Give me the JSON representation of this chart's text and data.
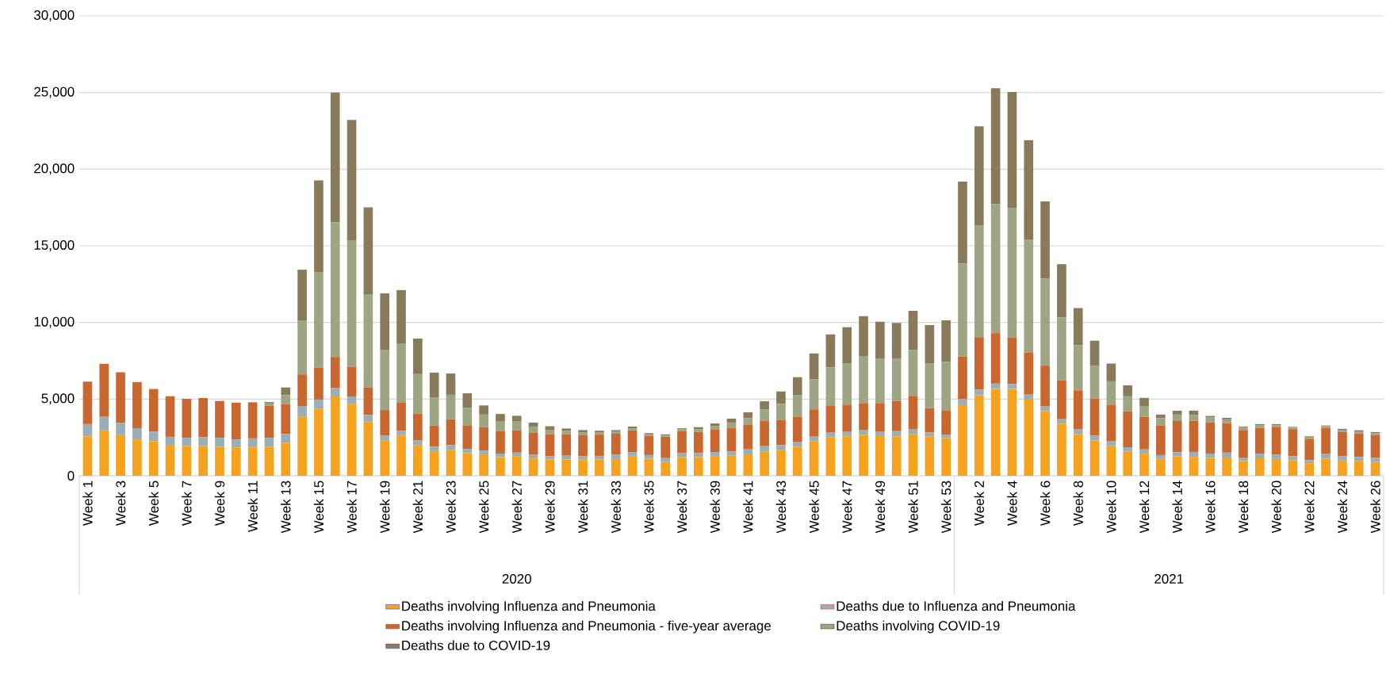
{
  "chart_data": {
    "type": "bar",
    "stacked": true,
    "categories": [
      "Week 1",
      null,
      "Week 3",
      null,
      "Week 5",
      null,
      "Week 7",
      null,
      "Week 9",
      null,
      "Week 11",
      null,
      "Week 13",
      null,
      "Week 15",
      null,
      "Week 17",
      null,
      "Week 19",
      null,
      "Week 21",
      null,
      "Week 23",
      null,
      "Week 25",
      null,
      "Week 27",
      null,
      "Week 29",
      null,
      "Week 31",
      null,
      "Week 33",
      null,
      "Week 35",
      null,
      "Week 37",
      null,
      "Week 39",
      null,
      "Week 41",
      null,
      "Week 43",
      null,
      "Week 45",
      null,
      "Week 47",
      null,
      "Week 49",
      null,
      "Week 51",
      null,
      "Week 53",
      null,
      "Week 2",
      null,
      "Week 4",
      null,
      "Week 6",
      null,
      "Week 8",
      null,
      "Week 10",
      null,
      "Week 12",
      null,
      "Week 14",
      null,
      "Week 16",
      null,
      "Week 18",
      null,
      "Week 20",
      null,
      "Week 22",
      null,
      "Week 24",
      null,
      "Week 26"
    ],
    "series": [
      {
        "name": "Deaths involving Influenza and Pneumonia",
        "color": "#f5a31e",
        "values": [
          2560,
          2960,
          2650,
          2370,
          2250,
          1970,
          1940,
          1940,
          1900,
          1850,
          1900,
          1890,
          2150,
          3840,
          4360,
          5170,
          4670,
          3560,
          2320,
          2650,
          2000,
          1610,
          1670,
          1470,
          1350,
          1210,
          1250,
          1130,
          1070,
          1070,
          1050,
          1050,
          1090,
          1250,
          1110,
          890,
          1210,
          1210,
          1250,
          1310,
          1400,
          1590,
          1690,
          1900,
          2260,
          2500,
          2570,
          2670,
          2590,
          2570,
          2710,
          2570,
          2450,
          4610,
          5240,
          5670,
          5670,
          4960,
          4220,
          3400,
          2710,
          2310,
          1930,
          1580,
          1440,
          1100,
          1260,
          1230,
          1170,
          1190,
          960,
          1140,
          1090,
          1010,
          820,
          1110,
          990,
          940,
          890
        ]
      },
      {
        "name": "Deaths due to Influenza and Pneumonia",
        "color": "#9aafb5",
        "values": [
          810,
          920,
          810,
          730,
          640,
          570,
          530,
          570,
          570,
          520,
          540,
          580,
          580,
          710,
          610,
          540,
          500,
          400,
          290,
          290,
          320,
          290,
          330,
          280,
          280,
          240,
          260,
          240,
          200,
          240,
          220,
          240,
          280,
          300,
          240,
          260,
          280,
          280,
          300,
          280,
          320,
          340,
          310,
          290,
          290,
          310,
          290,
          300,
          270,
          340,
          310,
          260,
          210,
          390,
          380,
          340,
          320,
          330,
          300,
          290,
          340,
          320,
          310,
          280,
          280,
          250,
          280,
          320,
          280,
          320,
          230,
          300,
          300,
          270,
          200,
          300,
          290,
          290,
          270
        ]
      },
      {
        "name": "Deaths involving Influenza and Pneumonia - five-year average",
        "color": "#c8672f",
        "values": [
          2770,
          3420,
          3290,
          3010,
          2770,
          2650,
          2550,
          2560,
          2410,
          2400,
          2350,
          2110,
          1940,
          2060,
          2090,
          2040,
          1940,
          1800,
          1680,
          1820,
          1730,
          1370,
          1690,
          1540,
          1530,
          1470,
          1450,
          1430,
          1430,
          1390,
          1370,
          1390,
          1370,
          1410,
          1250,
          1390,
          1410,
          1370,
          1450,
          1510,
          1590,
          1670,
          1650,
          1670,
          1780,
          1780,
          1780,
          1770,
          1880,
          1970,
          2190,
          1580,
          1580,
          2770,
          3420,
          3290,
          3010,
          2760,
          2660,
          2540,
          2520,
          2410,
          2400,
          2340,
          2130,
          1940,
          2030,
          2040,
          2030,
          1920,
          1790,
          1690,
          1800,
          1760,
          1380,
          1710,
          1580,
          1530,
          1500
        ]
      },
      {
        "name": "Deaths involving COVID-19",
        "color": "#9ea582",
        "values": [
          0,
          0,
          0,
          0,
          0,
          0,
          0,
          0,
          0,
          0,
          0,
          140,
          590,
          3490,
          6230,
          8770,
          8250,
          6090,
          3930,
          3840,
          2580,
          1850,
          1590,
          1150,
          830,
          650,
          570,
          410,
          300,
          220,
          200,
          160,
          160,
          140,
          100,
          80,
          140,
          180,
          250,
          370,
          450,
          710,
          1040,
          1380,
          1950,
          2480,
          2700,
          3070,
          2880,
          2740,
          3010,
          2930,
          3180,
          6060,
          7300,
          8420,
          8480,
          7340,
          5690,
          4100,
          2940,
          2120,
          1520,
          980,
          700,
          470,
          420,
          390,
          320,
          250,
          190,
          150,
          110,
          100,
          150,
          110,
          140,
          140,
          120
        ]
      },
      {
        "name": "Deaths due to COVID-19",
        "color": "#8a7a5c",
        "values": [
          0,
          0,
          0,
          0,
          0,
          0,
          0,
          0,
          0,
          0,
          0,
          90,
          500,
          3340,
          5980,
          8480,
          7850,
          5660,
          3680,
          3510,
          2320,
          1610,
          1390,
          940,
          600,
          460,
          380,
          260,
          230,
          160,
          140,
          100,
          80,
          110,
          80,
          80,
          60,
          130,
          160,
          260,
          380,
          550,
          810,
          1190,
          1700,
          2150,
          2350,
          2600,
          2430,
          2350,
          2540,
          2490,
          2720,
          5360,
          6460,
          7560,
          7560,
          6500,
          5030,
          3470,
          2430,
          1650,
          1160,
          720,
          530,
          230,
          250,
          270,
          100,
          100,
          50,
          90,
          70,
          50,
          40,
          50,
          60,
          70,
          70
        ]
      }
    ],
    "ylim": [
      0,
      30000
    ],
    "yticks": [
      0,
      {
        "value": 5000,
        "label": "5,000"
      },
      {
        "value": 10000,
        "label": "10,000"
      },
      {
        "value": 15000,
        "label": "15,000"
      },
      {
        "value": 20000,
        "label": "20,000"
      },
      {
        "value": 25000,
        "label": "25,000"
      },
      {
        "value": 30000,
        "label": "30,000"
      }
    ],
    "grid": "y",
    "legend": "bottom",
    "annotations": [
      "2020",
      "2021"
    ]
  }
}
